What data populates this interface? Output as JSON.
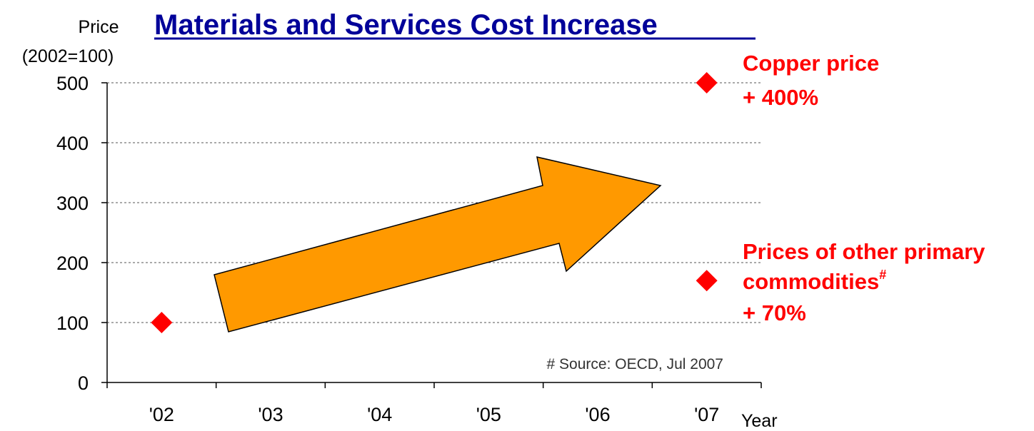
{
  "chart_data": {
    "type": "scatter",
    "title": "Materials and Services Cost Increase",
    "ylabel_line1": "Price",
    "ylabel_line2": "(2002=100)",
    "xlabel": "Year",
    "ylim": [
      0,
      500
    ],
    "yticks": [
      "0",
      "100",
      "200",
      "300",
      "400",
      "500"
    ],
    "categories": [
      "'02",
      "'03",
      "'04",
      "'05",
      "'06",
      "'07"
    ],
    "grid": "horizontal dotted",
    "points": [
      {
        "x": "'02",
        "y": 100
      },
      {
        "x": "'07",
        "y": 500
      },
      {
        "x": "'07",
        "y": 170
      }
    ],
    "annotations": {
      "copper_line1": "Copper price",
      "copper_line2": "+ 400%",
      "other_line1": "Prices of other primary",
      "other_line2": "commodities",
      "other_sup": "#",
      "other_line3": "+ 70%",
      "source": "# Source: OECD, Jul 2007"
    },
    "colors": {
      "title": "#000099",
      "marker": "#ff0000",
      "annotation": "#ff0000",
      "arrow": "#ff9900"
    }
  }
}
